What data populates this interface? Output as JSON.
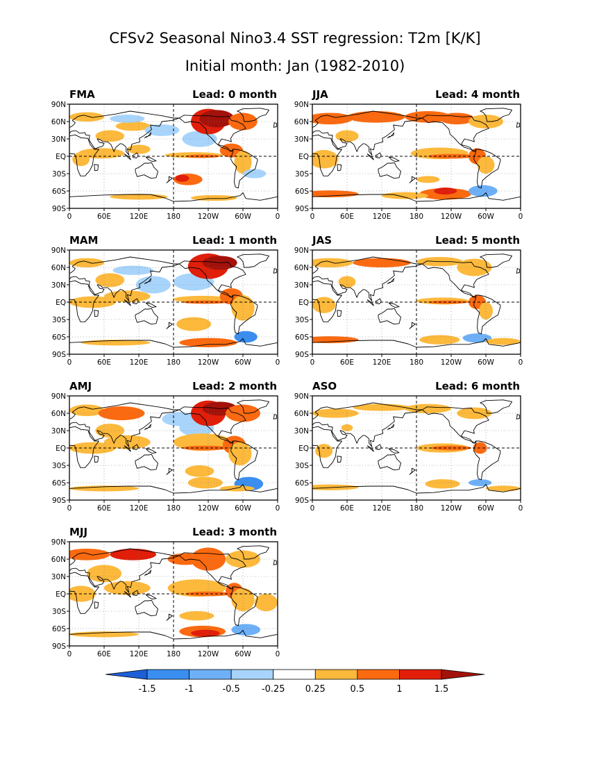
{
  "title_line1": "CFSv2 Seasonal Nino3.4 SST regression: T2m [K/K]",
  "title_line2": "Initial month: Jan (1982-2010)",
  "panels": [
    {
      "season": "FMA",
      "lead": "Lead: 0 month"
    },
    {
      "season": "MAM",
      "lead": "Lead: 1 month"
    },
    {
      "season": "AMJ",
      "lead": "Lead: 2 month"
    },
    {
      "season": "MJJ",
      "lead": "Lead: 3 month"
    },
    {
      "season": "JJA",
      "lead": "Lead: 4 month"
    },
    {
      "season": "JAS",
      "lead": "Lead: 5 month"
    },
    {
      "season": "ASO",
      "lead": "Lead: 6 month"
    }
  ],
  "lat_ticks": [
    "90N",
    "60N",
    "30N",
    "EQ",
    "30S",
    "60S",
    "90S"
  ],
  "lon_ticks": [
    "0",
    "60E",
    "120E",
    "180",
    "120W",
    "60W",
    "0"
  ],
  "colorbar": {
    "labels": [
      "-1.5",
      "-1",
      "-0.5",
      "-0.25",
      "0.25",
      "0.5",
      "1",
      "1.5"
    ],
    "colors": [
      "#1e5fd8",
      "#3a8ef0",
      "#6db0f8",
      "#a8d4fb",
      "#ffffff",
      "#fcb93c",
      "#fb6a10",
      "#e01e0a",
      "#a3120a"
    ]
  }
}
